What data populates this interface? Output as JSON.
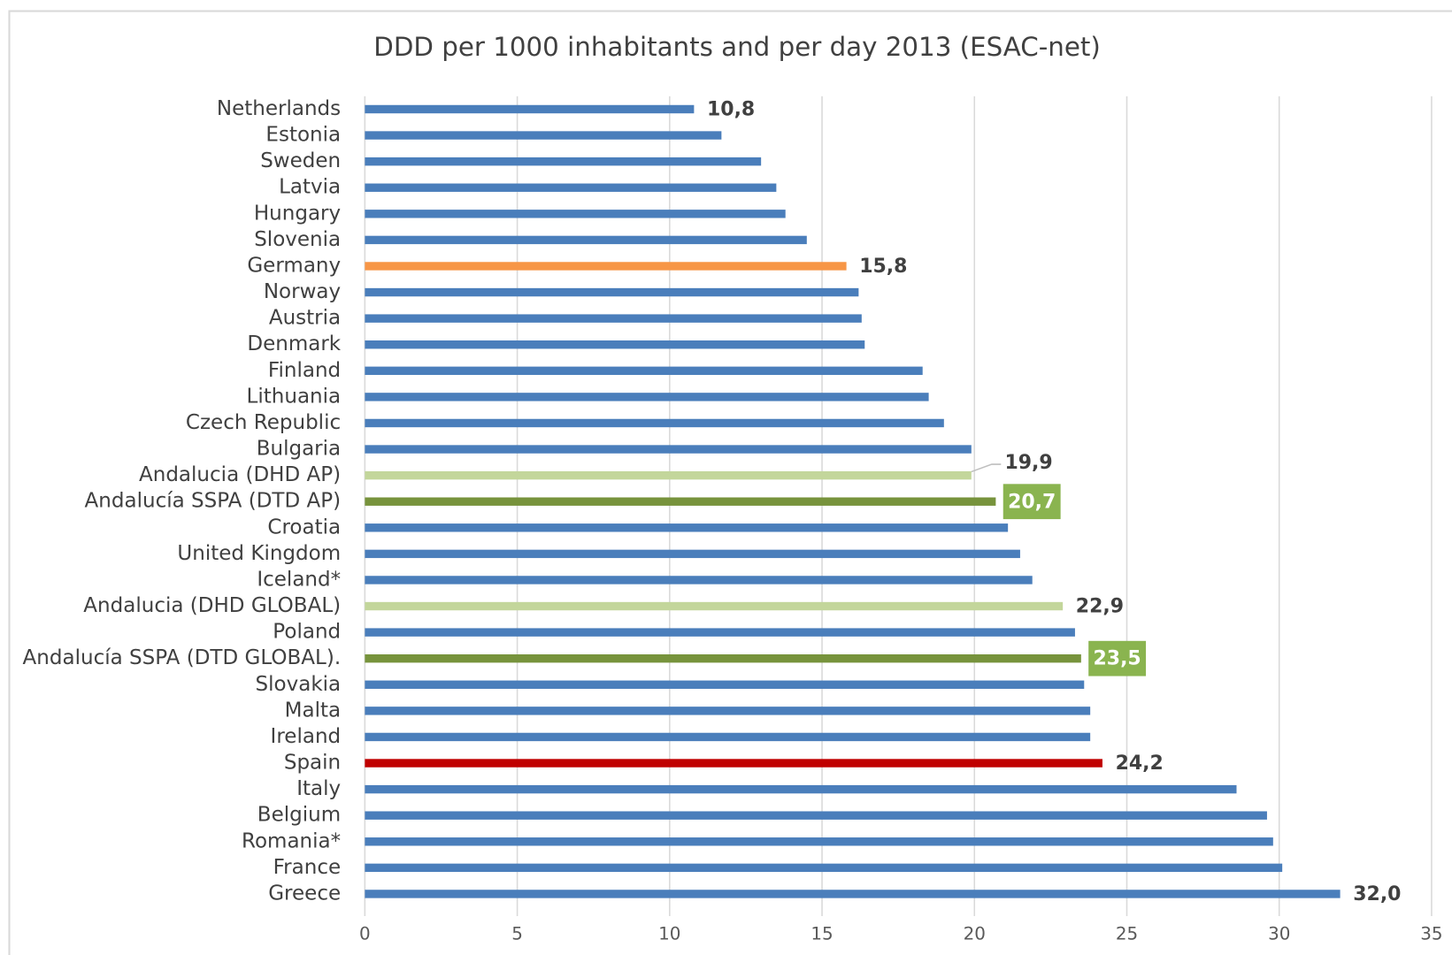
{
  "chart_data": {
    "type": "barh",
    "title": "DDD per 1000 inhabitants and per day 2013 (ESAC-net)",
    "categories": [
      "Netherlands",
      "Estonia",
      "Sweden",
      "Latvia",
      "Hungary",
      "Slovenia",
      "Germany",
      "Norway",
      "Austria",
      "Denmark",
      "Finland",
      "Lithuania",
      "Czech Republic",
      "Bulgaria",
      "Andalucia (DHD AP)",
      "Andalucía SSPA (DTD AP)",
      "Croatia",
      "United Kingdom",
      "Iceland*",
      "Andalucia (DHD GLOBAL)",
      "Poland",
      "Andalucía SSPA (DTD GLOBAL).",
      "Slovakia",
      "Malta",
      "Ireland",
      "Spain",
      "Italy",
      "Belgium",
      "Romania*",
      "France",
      "Greece"
    ],
    "values": [
      10.8,
      11.7,
      13.0,
      13.5,
      13.8,
      14.5,
      15.8,
      16.2,
      16.3,
      16.4,
      18.3,
      18.5,
      19.0,
      19.9,
      19.9,
      20.7,
      21.1,
      21.5,
      21.9,
      22.9,
      23.3,
      23.5,
      23.6,
      23.8,
      23.8,
      24.2,
      28.6,
      29.6,
      29.8,
      30.1,
      32.0
    ],
    "value_labels": [
      "10,8",
      null,
      null,
      null,
      null,
      null,
      "15,8",
      null,
      null,
      null,
      null,
      null,
      null,
      null,
      "19,9",
      "20,7",
      null,
      null,
      null,
      "22,9",
      null,
      "23,5",
      null,
      null,
      null,
      "24,2",
      null,
      null,
      null,
      null,
      "32,0"
    ],
    "colors": [
      "#4a7ebb",
      "#4a7ebb",
      "#4a7ebb",
      "#4a7ebb",
      "#4a7ebb",
      "#4a7ebb",
      "#f79646",
      "#4a7ebb",
      "#4a7ebb",
      "#4a7ebb",
      "#4a7ebb",
      "#4a7ebb",
      "#4a7ebb",
      "#4a7ebb",
      "#c3d69b",
      "#77933c",
      "#4a7ebb",
      "#4a7ebb",
      "#4a7ebb",
      "#c3d69b",
      "#4a7ebb",
      "#77933c",
      "#4a7ebb",
      "#4a7ebb",
      "#4a7ebb",
      "#c00000",
      "#4a7ebb",
      "#4a7ebb",
      "#4a7ebb",
      "#4a7ebb",
      "#4a7ebb"
    ],
    "xlim": [
      0,
      35
    ],
    "xticks": [
      0,
      5,
      10,
      15,
      20,
      25,
      30,
      35
    ],
    "grid": true
  }
}
